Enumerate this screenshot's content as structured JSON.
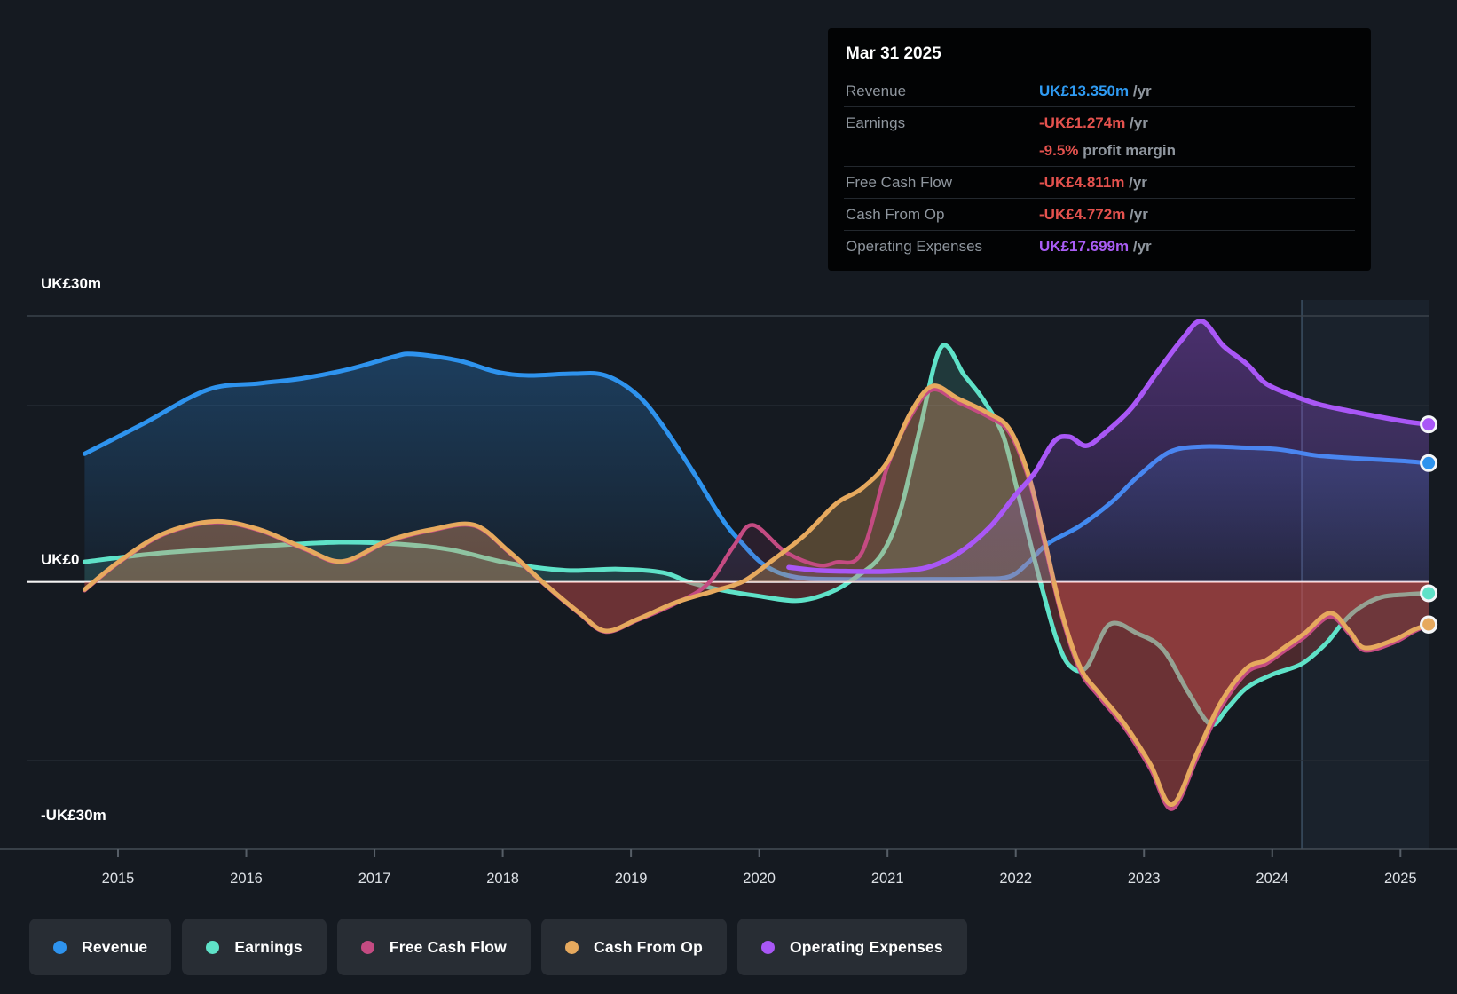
{
  "tooltip": {
    "title": "Mar 31 2025",
    "rows": [
      {
        "label": "Revenue",
        "value": "UK£13.350m",
        "suffix": " /yr",
        "color": "blue"
      },
      {
        "label": "Earnings",
        "value": "-UK£1.274m",
        "suffix": " /yr",
        "color": "red",
        "sub_value": "-9.5%",
        "sub_text": " profit margin"
      },
      {
        "label": "Free Cash Flow",
        "value": "-UK£4.811m",
        "suffix": " /yr",
        "color": "red"
      },
      {
        "label": "Cash From Op",
        "value": "-UK£4.772m",
        "suffix": " /yr",
        "color": "red"
      },
      {
        "label": "Operating Expenses",
        "value": "UK£17.699m",
        "suffix": " /yr",
        "color": "purple"
      }
    ]
  },
  "legend": [
    {
      "label": "Revenue",
      "color": "#2e93ee"
    },
    {
      "label": "Earnings",
      "color": "#5fe2c8"
    },
    {
      "label": "Free Cash Flow",
      "color": "#c44b82"
    },
    {
      "label": "Cash From Op",
      "color": "#e6a95e"
    },
    {
      "label": "Operating Expenses",
      "color": "#a957f6"
    }
  ],
  "axis": {
    "y_top_label": "UK£30m",
    "y_zero_label": "UK£0",
    "y_bottom_label": "-UK£30m",
    "years": [
      "2015",
      "2016",
      "2017",
      "2018",
      "2019",
      "2020",
      "2021",
      "2022",
      "2023",
      "2024",
      "2025"
    ]
  },
  "colors": {
    "background": "#151a21",
    "revenue": "#2e93ee",
    "earnings": "#5fe2c8",
    "free_cash_flow": "#c44b82",
    "cash_from_op": "#e6a95e",
    "operating_expenses": "#a957f6",
    "negative_fill": "#d9534f",
    "zero_line": "#ffffff",
    "grid_major": "#3a424b",
    "grid_minor": "#272e36",
    "tooltip_bg": "#020304",
    "chip_bg": "#282d34"
  },
  "chart_data": {
    "type": "area",
    "title": "Company financial history (UK£ millions per year)",
    "ylabel": "UK£m",
    "ylim": [
      -30,
      30
    ],
    "x_range": [
      2014.74,
      2025.22
    ],
    "grid": "horizontal",
    "legend_position": "bottom",
    "highlight_band_years": [
      2024.23,
      2025.22
    ],
    "units": "UK£m /yr",
    "series": [
      {
        "name": "Revenue",
        "key": "revenue",
        "points": [
          [
            2014.74,
            14.4
          ],
          [
            2015.2,
            17.8
          ],
          [
            2015.7,
            21.6
          ],
          [
            2016.1,
            22.3
          ],
          [
            2016.45,
            22.9
          ],
          [
            2016.8,
            23.9
          ],
          [
            2017.15,
            25.3
          ],
          [
            2017.3,
            25.6
          ],
          [
            2017.65,
            24.9
          ],
          [
            2017.95,
            23.6
          ],
          [
            2018.2,
            23.2
          ],
          [
            2018.55,
            23.4
          ],
          [
            2018.8,
            23.2
          ],
          [
            2019.05,
            21.0
          ],
          [
            2019.25,
            17.5
          ],
          [
            2019.5,
            12.0
          ],
          [
            2019.7,
            7.3
          ],
          [
            2019.85,
            4.6
          ],
          [
            2020.05,
            1.8
          ],
          [
            2020.3,
            0.5
          ],
          [
            2020.7,
            0.3
          ],
          [
            2021.2,
            0.3
          ],
          [
            2021.7,
            0.35
          ],
          [
            2021.95,
            0.6
          ],
          [
            2022.1,
            2.2
          ],
          [
            2022.25,
            4.3
          ],
          [
            2022.5,
            6.3
          ],
          [
            2022.75,
            9.0
          ],
          [
            2022.95,
            11.8
          ],
          [
            2023.2,
            14.6
          ],
          [
            2023.45,
            15.2
          ],
          [
            2023.75,
            15.1
          ],
          [
            2024.05,
            14.9
          ],
          [
            2024.35,
            14.2
          ],
          [
            2024.75,
            13.8
          ],
          [
            2025.0,
            13.6
          ],
          [
            2025.22,
            13.35
          ]
        ]
      },
      {
        "name": "Earnings",
        "key": "earnings",
        "points": [
          [
            2014.74,
            2.25
          ],
          [
            2015.3,
            3.2
          ],
          [
            2016.0,
            3.9
          ],
          [
            2016.7,
            4.45
          ],
          [
            2017.2,
            4.25
          ],
          [
            2017.6,
            3.6
          ],
          [
            2018.05,
            2.1
          ],
          [
            2018.5,
            1.3
          ],
          [
            2018.9,
            1.45
          ],
          [
            2019.25,
            1.05
          ],
          [
            2019.45,
            0.0
          ],
          [
            2019.7,
            -0.9
          ],
          [
            2020.0,
            -1.6
          ],
          [
            2020.3,
            -2.1
          ],
          [
            2020.55,
            -1.2
          ],
          [
            2020.75,
            0.5
          ],
          [
            2020.95,
            3.0
          ],
          [
            2021.1,
            8.0
          ],
          [
            2021.25,
            17.0
          ],
          [
            2021.42,
            26.4
          ],
          [
            2021.6,
            23.2
          ],
          [
            2021.75,
            20.4
          ],
          [
            2021.9,
            16.5
          ],
          [
            2022.0,
            11.0
          ],
          [
            2022.12,
            4.0
          ],
          [
            2022.22,
            -1.5
          ],
          [
            2022.32,
            -6.5
          ],
          [
            2022.42,
            -9.4
          ],
          [
            2022.55,
            -9.6
          ],
          [
            2022.73,
            -4.8
          ],
          [
            2022.95,
            -5.8
          ],
          [
            2023.15,
            -7.6
          ],
          [
            2023.35,
            -12.5
          ],
          [
            2023.52,
            -16.0
          ],
          [
            2023.65,
            -14.2
          ],
          [
            2023.8,
            -11.9
          ],
          [
            2024.0,
            -10.4
          ],
          [
            2024.23,
            -9.2
          ],
          [
            2024.42,
            -6.9
          ],
          [
            2024.55,
            -4.6
          ],
          [
            2024.68,
            -2.9
          ],
          [
            2024.85,
            -1.7
          ],
          [
            2025.05,
            -1.4
          ],
          [
            2025.22,
            -1.27
          ]
        ]
      },
      {
        "name": "Free Cash Flow",
        "key": "free_cash_flow",
        "points": [
          [
            2014.74,
            -0.95
          ],
          [
            2015.0,
            2.1
          ],
          [
            2015.35,
            5.3
          ],
          [
            2015.75,
            6.7
          ],
          [
            2016.1,
            5.8
          ],
          [
            2016.45,
            3.7
          ],
          [
            2016.75,
            2.2
          ],
          [
            2017.1,
            4.5
          ],
          [
            2017.45,
            5.8
          ],
          [
            2017.78,
            6.3
          ],
          [
            2018.05,
            3.3
          ],
          [
            2018.35,
            -0.6
          ],
          [
            2018.6,
            -3.6
          ],
          [
            2018.8,
            -5.6
          ],
          [
            2019.05,
            -4.3
          ],
          [
            2019.35,
            -2.4
          ],
          [
            2019.6,
            -0.2
          ],
          [
            2019.8,
            4.0
          ],
          [
            2019.95,
            6.4
          ],
          [
            2020.2,
            3.4
          ],
          [
            2020.45,
            1.9
          ],
          [
            2020.6,
            2.2
          ],
          [
            2020.8,
            3.3
          ],
          [
            2021.0,
            13.0
          ],
          [
            2021.18,
            18.6
          ],
          [
            2021.35,
            21.6
          ],
          [
            2021.55,
            20.2
          ],
          [
            2021.78,
            18.6
          ],
          [
            2021.95,
            16.8
          ],
          [
            2022.1,
            11.6
          ],
          [
            2022.22,
            4.6
          ],
          [
            2022.35,
            -3.4
          ],
          [
            2022.5,
            -9.9
          ],
          [
            2022.65,
            -12.9
          ],
          [
            2022.85,
            -16.4
          ],
          [
            2023.05,
            -21.0
          ],
          [
            2023.22,
            -25.5
          ],
          [
            2023.42,
            -19.6
          ],
          [
            2023.6,
            -14.1
          ],
          [
            2023.8,
            -10.2
          ],
          [
            2023.95,
            -9.2
          ],
          [
            2024.1,
            -7.7
          ],
          [
            2024.25,
            -6.2
          ],
          [
            2024.45,
            -3.9
          ],
          [
            2024.6,
            -5.8
          ],
          [
            2024.72,
            -7.7
          ],
          [
            2024.95,
            -6.8
          ],
          [
            2025.1,
            -5.6
          ],
          [
            2025.22,
            -4.81
          ]
        ]
      },
      {
        "name": "Cash From Op",
        "key": "cash_from_op",
        "points": [
          [
            2014.74,
            -0.85
          ],
          [
            2015.0,
            2.2
          ],
          [
            2015.35,
            5.4
          ],
          [
            2015.75,
            6.8
          ],
          [
            2016.1,
            5.9
          ],
          [
            2016.45,
            3.8
          ],
          [
            2016.75,
            2.3
          ],
          [
            2017.1,
            4.6
          ],
          [
            2017.45,
            5.9
          ],
          [
            2017.78,
            6.4
          ],
          [
            2018.05,
            3.4
          ],
          [
            2018.35,
            -0.5
          ],
          [
            2018.6,
            -3.5
          ],
          [
            2018.8,
            -5.5
          ],
          [
            2019.05,
            -4.2
          ],
          [
            2019.35,
            -2.3
          ],
          [
            2019.65,
            -1.0
          ],
          [
            2019.88,
            0.1
          ],
          [
            2020.1,
            2.4
          ],
          [
            2020.35,
            5.2
          ],
          [
            2020.6,
            8.8
          ],
          [
            2020.8,
            10.5
          ],
          [
            2021.0,
            13.5
          ],
          [
            2021.18,
            19.0
          ],
          [
            2021.35,
            22.0
          ],
          [
            2021.55,
            20.6
          ],
          [
            2021.78,
            19.0
          ],
          [
            2021.95,
            17.2
          ],
          [
            2022.1,
            12.0
          ],
          [
            2022.22,
            5.0
          ],
          [
            2022.35,
            -3.0
          ],
          [
            2022.5,
            -9.5
          ],
          [
            2022.65,
            -12.5
          ],
          [
            2022.85,
            -16.0
          ],
          [
            2023.05,
            -20.5
          ],
          [
            2023.22,
            -25.0
          ],
          [
            2023.42,
            -19.0
          ],
          [
            2023.6,
            -13.5
          ],
          [
            2023.8,
            -9.7
          ],
          [
            2023.95,
            -8.8
          ],
          [
            2024.1,
            -7.3
          ],
          [
            2024.25,
            -5.8
          ],
          [
            2024.45,
            -3.5
          ],
          [
            2024.6,
            -5.5
          ],
          [
            2024.72,
            -7.4
          ],
          [
            2024.95,
            -6.5
          ],
          [
            2025.1,
            -5.4
          ],
          [
            2025.22,
            -4.77
          ]
        ]
      },
      {
        "name": "Operating Expenses",
        "key": "operating_expenses",
        "points": [
          [
            2020.23,
            1.65
          ],
          [
            2020.45,
            1.3
          ],
          [
            2020.7,
            1.2
          ],
          [
            2021.0,
            1.2
          ],
          [
            2021.3,
            1.6
          ],
          [
            2021.55,
            3.2
          ],
          [
            2021.8,
            6.2
          ],
          [
            2022.0,
            9.8
          ],
          [
            2022.15,
            12.3
          ],
          [
            2022.3,
            15.8
          ],
          [
            2022.42,
            16.3
          ],
          [
            2022.55,
            15.3
          ],
          [
            2022.7,
            16.8
          ],
          [
            2022.9,
            19.5
          ],
          [
            2023.1,
            23.5
          ],
          [
            2023.3,
            27.3
          ],
          [
            2023.45,
            29.3
          ],
          [
            2023.62,
            26.5
          ],
          [
            2023.8,
            24.5
          ],
          [
            2023.95,
            22.3
          ],
          [
            2024.15,
            21.0
          ],
          [
            2024.35,
            20.0
          ],
          [
            2024.6,
            19.2
          ],
          [
            2024.85,
            18.5
          ],
          [
            2025.05,
            18.0
          ],
          [
            2025.22,
            17.7
          ]
        ]
      }
    ]
  }
}
